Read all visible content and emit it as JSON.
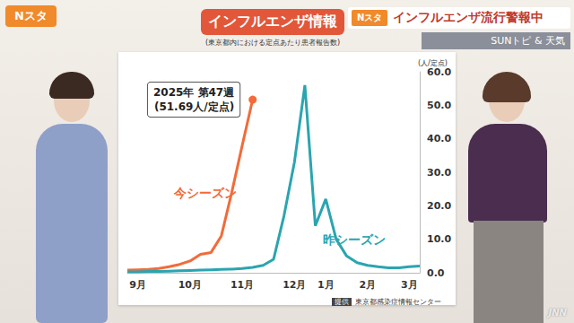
{
  "logo": "Nスタ",
  "banner": {
    "program": "Nスタ",
    "title": "インフルエンザ流行警報中",
    "segment": "SUNトピ & 天気"
  },
  "source": {
    "label": "提供",
    "text": "東京都感染症情報センター"
  },
  "watermark": "JNN",
  "chart_data": {
    "type": "line",
    "title": "インフルエンザ情報",
    "subtitle": "(東京都内における定点あたり患者報告数)",
    "ylabel": "(人/定点)",
    "categories": [
      null,
      "9月",
      null,
      null,
      null,
      null,
      "10月",
      null,
      null,
      null,
      null,
      "11月",
      null,
      null,
      null,
      null,
      "12月",
      null,
      null,
      "1月",
      null,
      null,
      null,
      "2月",
      null,
      null,
      null,
      "3月",
      null
    ],
    "series": [
      {
        "name": "今シーズン",
        "color": "#f26b3a",
        "marker": "none",
        "values": [
          0.8,
          0.9,
          1.0,
          1.3,
          1.8,
          2.5,
          3.5,
          5.5,
          6.0,
          11,
          24,
          38,
          51.69,
          null,
          null,
          null,
          null,
          null,
          null,
          null,
          null,
          null,
          null,
          null,
          null,
          null,
          null,
          null,
          null
        ]
      },
      {
        "name": "昨シーズン",
        "color": "#2aa5b0",
        "marker": "none",
        "values": [
          0.3,
          0.3,
          0.4,
          0.4,
          0.5,
          0.6,
          0.7,
          0.8,
          0.9,
          1.0,
          1.1,
          1.3,
          1.6,
          2.2,
          4.0,
          17,
          33,
          56,
          14,
          22,
          10,
          5,
          3,
          2.2,
          1.8,
          1.5,
          1.5,
          1.8,
          2.0
        ]
      }
    ],
    "annotation": {
      "series": "今シーズン",
      "index": 12,
      "text": [
        "2025年 第47週",
        "(51.69人/定点)"
      ]
    },
    "ylim": [
      0,
      60
    ],
    "yticks": [
      {
        "value": 0,
        "label": "0.0"
      },
      {
        "value": 10,
        "label": "10.0"
      },
      {
        "value": 20,
        "label": "20.0"
      },
      {
        "value": 30,
        "label": "30.0"
      },
      {
        "value": 40,
        "label": "40.0"
      },
      {
        "value": 50,
        "label": "50.0"
      },
      {
        "value": 60,
        "label": "60.0"
      }
    ],
    "grid": false,
    "legend": "none"
  }
}
